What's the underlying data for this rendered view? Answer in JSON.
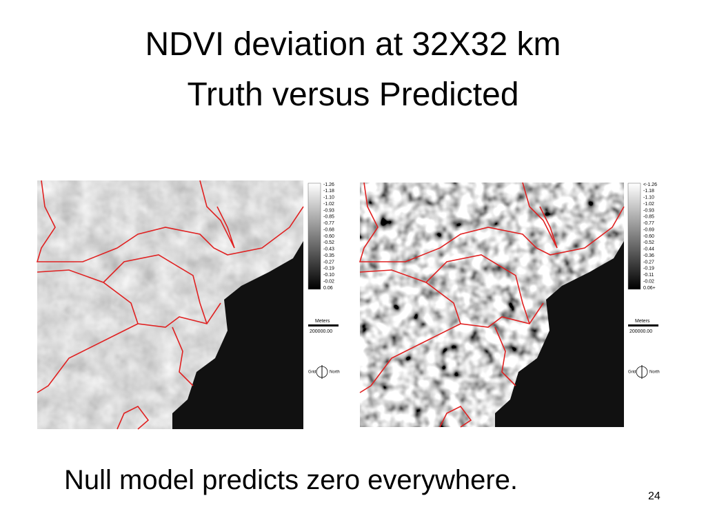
{
  "title": {
    "line1": "NDVI deviation at 32X32 km",
    "line2": "Truth versus Predicted"
  },
  "panels": [
    {
      "legend": [
        "-1.26",
        "-1.18",
        "-1.10",
        "-1.02",
        "-0.93",
        "-0.85",
        "-0.77",
        "-0.68",
        "-0.60",
        "-0.52",
        "-0.43",
        "-0.35",
        "-0.27",
        "-0.19",
        "-0.10",
        "-0.02",
        "0.06"
      ],
      "scale_unit": "Meters",
      "scale_value": "200000.00",
      "compass_left": "Grid",
      "compass_right": "North"
    },
    {
      "legend": [
        "<-1.26",
        "-1.18",
        "-1.10",
        "-1.02",
        "-0.93",
        "-0.85",
        "-0.77",
        "-0.69",
        "-0.60",
        "-0.52",
        "-0.44",
        "-0.36",
        "-0.27",
        "-0.19",
        "-0.11",
        "-0.02",
        "0.06+"
      ],
      "scale_unit": "Meters",
      "scale_value": "200000.00",
      "compass_left": "Grid",
      "compass_right": "North"
    }
  ],
  "caption": "Null model predicts zero everywhere.",
  "page_number": "24"
}
